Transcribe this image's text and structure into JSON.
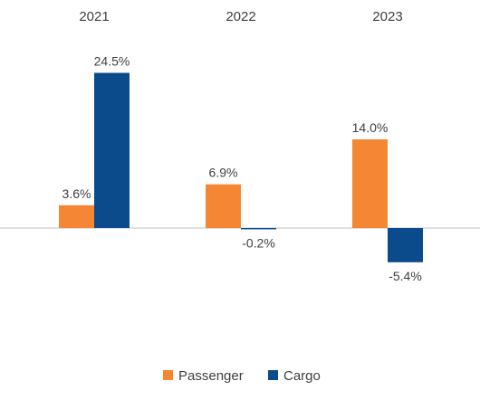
{
  "chart_data": {
    "type": "bar",
    "categories": [
      "2021",
      "2022",
      "2023"
    ],
    "series": [
      {
        "name": "Passenger",
        "color": "#F58634",
        "values": [
          3.6,
          6.9,
          14.0
        ],
        "labels": [
          "3.6%",
          "6.9%",
          "14.0%"
        ]
      },
      {
        "name": "Cargo",
        "color": "#0B4A8B",
        "values": [
          24.5,
          -0.2,
          -5.4
        ],
        "labels": [
          "24.5%",
          "-0.2%",
          "-5.4%"
        ]
      }
    ],
    "ylim": [
      -10,
      26
    ],
    "axis_color": "#BFBFBF",
    "category_axis_position": "top",
    "grid": false,
    "legend_position": "bottom"
  }
}
